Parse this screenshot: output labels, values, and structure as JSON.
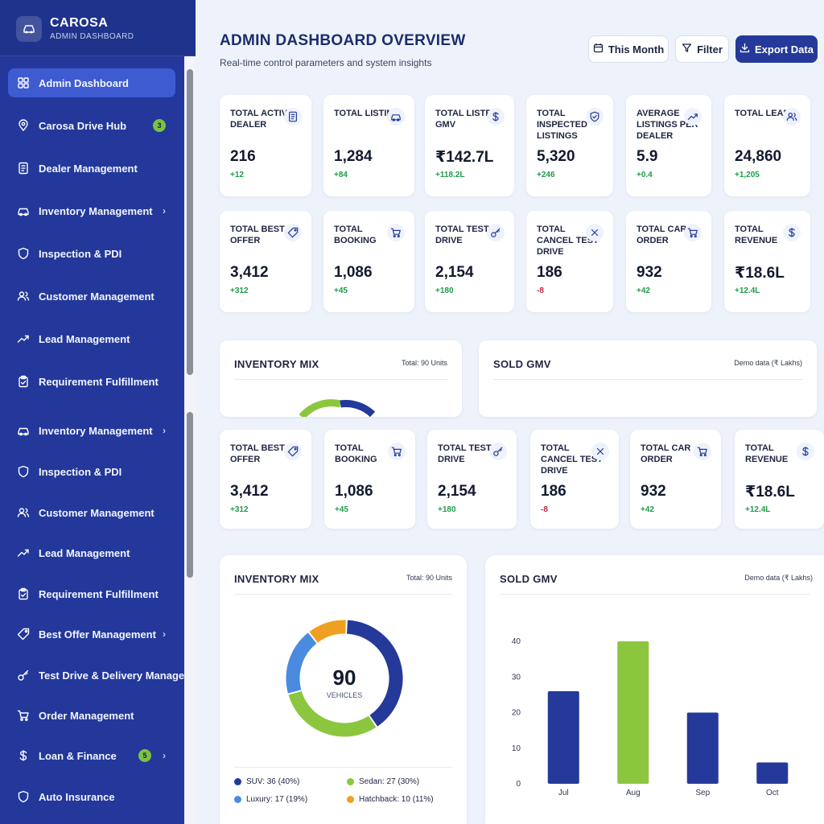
{
  "brand": {
    "title": "CAROSA",
    "subtitle": "ADMIN DASHBOARD"
  },
  "sidebar": {
    "items": [
      {
        "label": "Admin Dashboard",
        "icon": "grid-icon",
        "active": true
      },
      {
        "label": "Carosa Drive Hub",
        "icon": "location-pin-icon",
        "badge": "3"
      },
      {
        "label": "Dealer Management",
        "icon": "document-icon"
      },
      {
        "label": "Inventory Management",
        "icon": "car-icon",
        "chevron": true
      },
      {
        "label": "Inspection & PDI",
        "icon": "shield-icon"
      },
      {
        "label": "Customer Management",
        "icon": "users-icon"
      },
      {
        "label": "Lead Management",
        "icon": "trend-icon"
      },
      {
        "label": "Requirement Fulfillment",
        "icon": "clipboard-icon"
      },
      {
        "label": "Inventory Management",
        "icon": "car-icon",
        "chevron": true
      },
      {
        "label": "Inspection & PDI",
        "icon": "shield-icon"
      },
      {
        "label": "Customer Management",
        "icon": "users-icon"
      },
      {
        "label": "Lead Management",
        "icon": "trend-icon"
      },
      {
        "label": "Requirement Fulfillment",
        "icon": "clipboard-icon"
      },
      {
        "label": "Best Offer Management",
        "icon": "tag-icon",
        "chevron": true
      },
      {
        "label": "Test Drive & Delivery Management",
        "icon": "key-icon"
      },
      {
        "label": "Order Management",
        "icon": "cart-icon"
      },
      {
        "label": "Loan & Finance",
        "icon": "dollar-icon",
        "badge": "5",
        "chevron": true
      },
      {
        "label": "Auto Insurance",
        "icon": "shield-icon"
      }
    ]
  },
  "header": {
    "title": "ADMIN DASHBOARD OVERVIEW",
    "subtitle": "Real-time control parameters and system insights",
    "buttons": {
      "period": "This Month",
      "filter": "Filter",
      "export": "Export Data"
    }
  },
  "stats_row1": [
    {
      "label": "TOTAL ACTIVE DEALER",
      "value": "216",
      "delta": "+12",
      "icon": "document-icon"
    },
    {
      "label": "TOTAL LISTING",
      "value": "1,284",
      "delta": "+84",
      "icon": "car-icon"
    },
    {
      "label": "TOTAL LISTED GMV",
      "value": "₹142.7L",
      "delta": "+118.2L",
      "icon": "dollar-icon"
    },
    {
      "label": "TOTAL INSPECTED LISTINGS",
      "value": "5,320",
      "delta": "+246",
      "icon": "shield-check-icon"
    },
    {
      "label": "AVERAGE LISTINGS PER DEALER",
      "value": "5.9",
      "delta": "+0.4",
      "icon": "trend-icon"
    },
    {
      "label": "TOTAL LEADS",
      "value": "24,860",
      "delta": "+1,205",
      "icon": "users-icon"
    }
  ],
  "stats_row2": [
    {
      "label": "TOTAL BEST OFFER",
      "value": "3,412",
      "delta": "+312",
      "icon": "tag-icon"
    },
    {
      "label": "TOTAL BOOKING",
      "value": "1,086",
      "delta": "+45",
      "icon": "cart-icon"
    },
    {
      "label": "TOTAL TEST DRIVE",
      "value": "2,154",
      "delta": "+180",
      "icon": "key-icon"
    },
    {
      "label": "TOTAL CANCEL TEST DRIVE",
      "value": "186",
      "delta": "-8",
      "icon": "close-icon",
      "negative": true
    },
    {
      "label": "TOTAL CAR ORDER",
      "value": "932",
      "delta": "+42",
      "icon": "cart-icon"
    },
    {
      "label": "TOTAL REVENUE",
      "value": "₹18.6L",
      "delta": "+12.4L",
      "icon": "dollar-icon"
    }
  ],
  "panels": {
    "inventory_mix": {
      "title": "INVENTORY MIX",
      "note": "Total: 90 Units"
    },
    "sold_gmv": {
      "title": "SOLD GMV",
      "note": "Demo data (₹ Lakhs)"
    }
  },
  "colors": {
    "navy": "#24399a",
    "green": "#8cc63f",
    "blue": "#4a8be0",
    "orange": "#f0a020"
  },
  "chart_data": [
    {
      "type": "pie",
      "title": "INVENTORY MIX",
      "center_value": "90",
      "center_label": "VEHICLES",
      "slices": [
        {
          "name": "SUV",
          "value": 36,
          "label": "SUV: 36 (40%)",
          "color": "#24399a"
        },
        {
          "name": "Sedan",
          "value": 27,
          "label": "Sedan: 27 (30%)",
          "color": "#8cc63f"
        },
        {
          "name": "Luxury",
          "value": 17,
          "label": "Luxury: 17 (19%)",
          "color": "#4a8be0"
        },
        {
          "name": "Hatchback",
          "value": 10,
          "label": "Hatchback: 10 (11%)",
          "color": "#f0a020"
        }
      ],
      "legend_position": "bottom"
    },
    {
      "type": "bar",
      "title": "SOLD GMV",
      "categories": [
        "Jul",
        "Aug",
        "Sep",
        "Oct"
      ],
      "values": [
        26,
        40,
        20,
        6
      ],
      "colors": [
        "#24399a",
        "#8cc63f",
        "#24399a",
        "#24399a"
      ],
      "ylim": [
        0,
        40
      ],
      "yticks": [
        0,
        10,
        20,
        30,
        40
      ],
      "grid": false
    }
  ]
}
